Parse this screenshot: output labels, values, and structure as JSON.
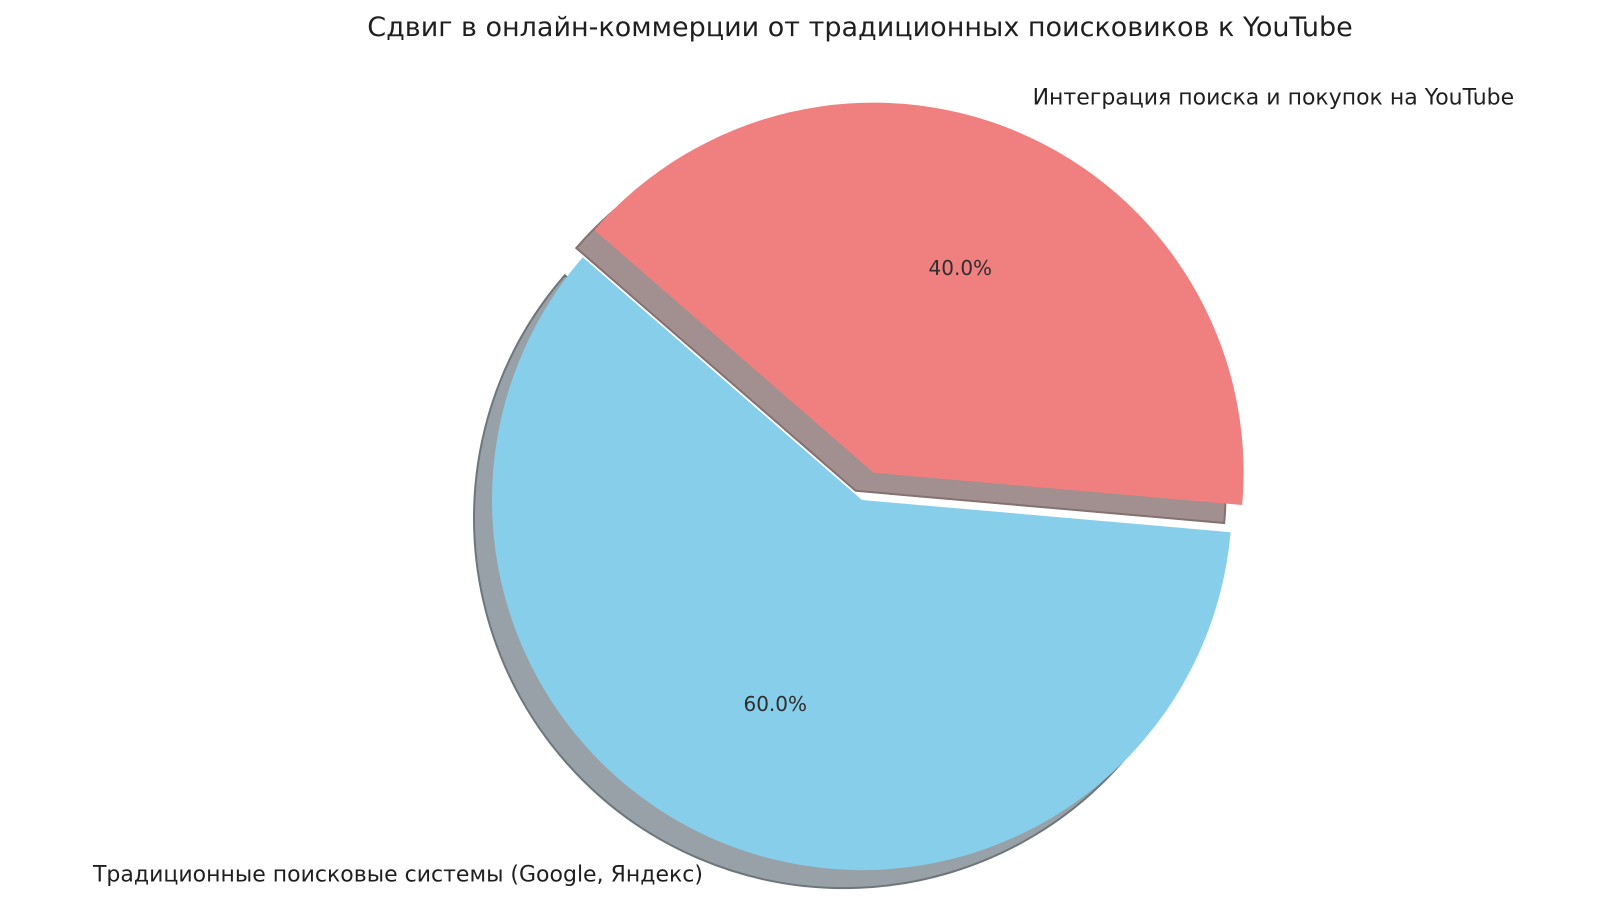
{
  "chart_data": {
    "type": "pie",
    "title": "Сдвиг в онлайн-коммерции от традиционных поисковиков к YouTube",
    "background_color": "#FFFFFF",
    "text_color": "#1F1F1F",
    "start_angle_deg": -5,
    "counterclockwise": true,
    "shadow": true,
    "legend_position": "none",
    "slices": [
      {
        "label": "Интеграция поиска и покупок на YouTube",
        "value": 40.0,
        "pct_label": "40.0%",
        "color": "#F08080",
        "shadow_color": "#A28F8F",
        "shadow_edge_color": "#857171",
        "explode": 0.08
      },
      {
        "label": "Традиционные поисковые системы (Google, Яндекс)",
        "value": 60.0,
        "pct_label": "60.0%",
        "color": "#87CEEB",
        "shadow_color": "#97A1A7",
        "shadow_edge_color": "#6D767B",
        "explode": 0
      }
    ]
  }
}
